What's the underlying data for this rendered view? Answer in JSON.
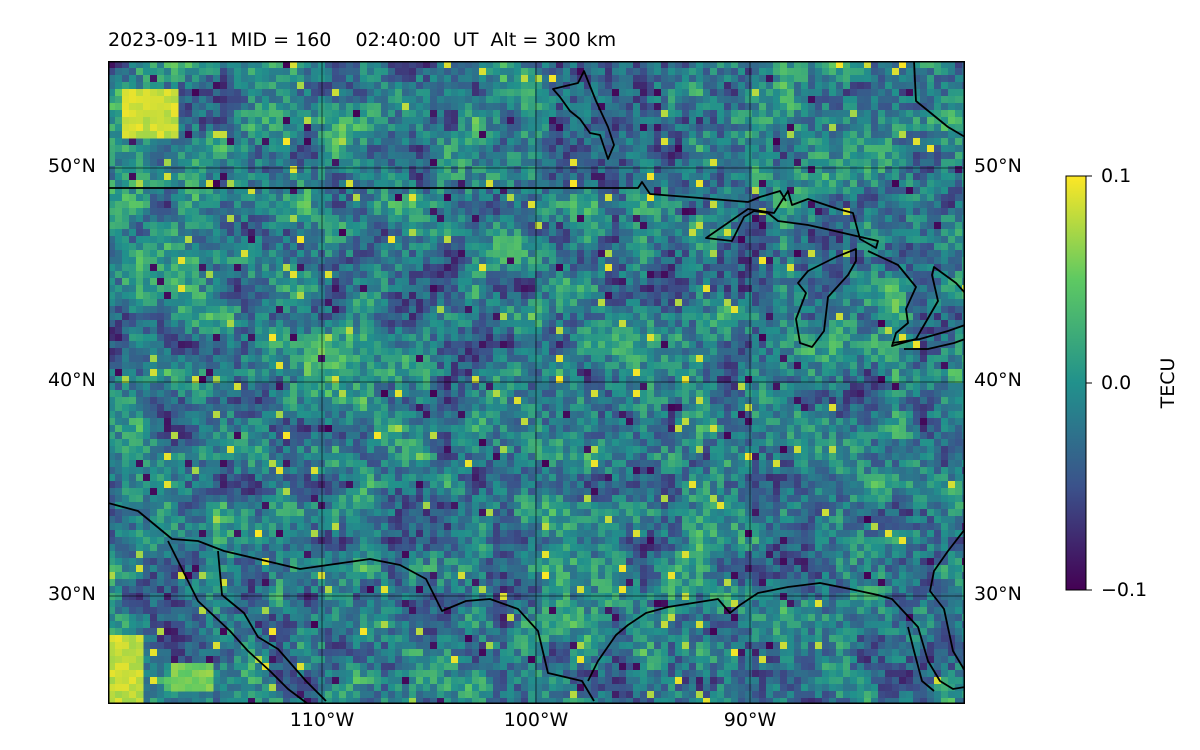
{
  "title": "2023-09-11  MID = 160    02:40:00  UT  Alt = 300 km",
  "map": {
    "lon_range": [
      -120,
      -80
    ],
    "lat_range": [
      25,
      55
    ],
    "grid": true,
    "colormap": "viridis",
    "noise_pattern": "random",
    "lon_ticks": [
      "110°W",
      "100°W",
      "90°W"
    ],
    "lat_ticks": [
      "50°N",
      "40°N",
      "30°N"
    ],
    "border_color": "#000000",
    "layers": [
      "coastlines",
      "country-borders",
      "great-lakes"
    ]
  },
  "colorbar": {
    "label": "TECU",
    "ticks": [
      "0.1",
      "0.0",
      "−0.1"
    ],
    "vmin": -0.1,
    "vmax": 0.1,
    "colors": [
      "#440154",
      "#3b528b",
      "#21918c",
      "#5ec962",
      "#fde725"
    ]
  }
}
